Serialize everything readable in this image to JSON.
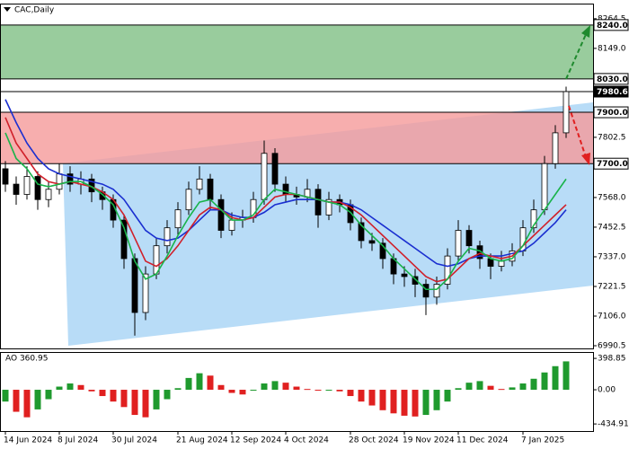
{
  "chart_data": [
    {
      "type": "candlestick",
      "title": "CAC,Daily",
      "categories": [
        "14 Jun 2024",
        null,
        null,
        null,
        null,
        "8 Jul 2024",
        null,
        null,
        null,
        null,
        "30 Jul 2024",
        null,
        null,
        null,
        null,
        null,
        "21 Aug 2024",
        null,
        null,
        null,
        null,
        "12 Sep 2024",
        null,
        null,
        null,
        null,
        "4 Oct 2024",
        null,
        null,
        null,
        null,
        null,
        "28 Oct 2024",
        null,
        null,
        null,
        null,
        "19 Nov 2024",
        null,
        null,
        null,
        null,
        "11 Dec 2024",
        null,
        null,
        null,
        null,
        null,
        "7 Jan 2025",
        null,
        null,
        null,
        null
      ],
      "open": [
        7680,
        7620,
        7580,
        7650,
        7560,
        7600,
        7660,
        7620,
        7640,
        7590,
        7560,
        7480,
        7330,
        7120,
        7270,
        7380,
        7450,
        7520,
        7600,
        7640,
        7560,
        7440,
        7480,
        7490,
        7560,
        7740,
        7620,
        7580,
        7570,
        7600,
        7500,
        7560,
        7540,
        7470,
        7400,
        7390,
        7330,
        7270,
        7260,
        7230,
        7180,
        7230,
        7340,
        7440,
        7380,
        7330,
        7300,
        7320,
        7360,
        7450,
        7520,
        7700,
        7820
      ],
      "high": [
        7710,
        7650,
        7690,
        7670,
        7630,
        7700,
        7690,
        7670,
        7660,
        7610,
        7580,
        7500,
        7350,
        7300,
        7410,
        7480,
        7550,
        7630,
        7690,
        7660,
        7580,
        7510,
        7520,
        7590,
        7790,
        7760,
        7650,
        7610,
        7640,
        7620,
        7590,
        7580,
        7560,
        7490,
        7430,
        7410,
        7350,
        7300,
        7290,
        7250,
        7260,
        7370,
        7480,
        7460,
        7400,
        7350,
        7360,
        7390,
        7480,
        7560,
        7730,
        7850,
        8000
      ],
      "low": [
        7590,
        7540,
        7560,
        7520,
        7530,
        7580,
        7590,
        7580,
        7550,
        7520,
        7450,
        7290,
        7030,
        7090,
        7250,
        7350,
        7420,
        7500,
        7580,
        7520,
        7410,
        7420,
        7450,
        7470,
        7540,
        7590,
        7550,
        7540,
        7550,
        7450,
        7480,
        7510,
        7440,
        7370,
        7360,
        7290,
        7230,
        7220,
        7180,
        7110,
        7150,
        7210,
        7320,
        7350,
        7290,
        7250,
        7280,
        7300,
        7340,
        7430,
        7500,
        7680,
        7800
      ],
      "close": [
        7620,
        7580,
        7650,
        7560,
        7600,
        7660,
        7620,
        7640,
        7590,
        7560,
        7480,
        7330,
        7120,
        7270,
        7380,
        7450,
        7520,
        7600,
        7640,
        7560,
        7440,
        7480,
        7490,
        7560,
        7740,
        7620,
        7580,
        7570,
        7600,
        7500,
        7560,
        7540,
        7470,
        7400,
        7390,
        7330,
        7270,
        7260,
        7230,
        7180,
        7230,
        7340,
        7440,
        7380,
        7330,
        7300,
        7320,
        7360,
        7450,
        7520,
        7700,
        7820,
        7980.6
      ],
      "up_color": "#ffffff",
      "down_color": "#000000",
      "series": [
        {
          "color": "#1a2fd0",
          "values": [
            7950,
            7860,
            7780,
            7720,
            7680,
            7660,
            7650,
            7640,
            7630,
            7620,
            7600,
            7560,
            7500,
            7440,
            7410,
            7400,
            7410,
            7440,
            7480,
            7520,
            7520,
            7500,
            7490,
            7490,
            7510,
            7540,
            7550,
            7560,
            7560,
            7560,
            7550,
            7550,
            7540,
            7520,
            7490,
            7460,
            7430,
            7400,
            7370,
            7340,
            7310,
            7300,
            7310,
            7330,
            7340,
            7340,
            7340,
            7350,
            7360,
            7390,
            7430,
            7470,
            7520
          ]
        },
        {
          "color": "#d0202a",
          "values": [
            7880,
            7780,
            7720,
            7660,
            7630,
            7620,
            7630,
            7620,
            7610,
            7590,
            7560,
            7500,
            7410,
            7320,
            7300,
            7330,
            7380,
            7440,
            7500,
            7530,
            7520,
            7490,
            7480,
            7490,
            7530,
            7570,
            7580,
            7580,
            7570,
            7560,
            7550,
            7550,
            7530,
            7500,
            7460,
            7420,
            7380,
            7340,
            7300,
            7260,
            7240,
            7250,
            7290,
            7330,
            7350,
            7340,
            7330,
            7340,
            7380,
            7420,
            7460,
            7500,
            7540
          ]
        },
        {
          "color": "#19b34a",
          "values": [
            7820,
            7720,
            7680,
            7620,
            7610,
            7620,
            7630,
            7630,
            7610,
            7580,
            7540,
            7450,
            7320,
            7250,
            7270,
            7340,
            7420,
            7490,
            7550,
            7560,
            7520,
            7480,
            7480,
            7500,
            7560,
            7600,
            7590,
            7580,
            7570,
            7560,
            7550,
            7540,
            7510,
            7460,
            7420,
            7380,
            7330,
            7290,
            7250,
            7210,
            7210,
            7250,
            7320,
            7370,
            7360,
            7330,
            7320,
            7330,
            7380,
            7460,
            7520,
            7580,
            7640
          ]
        }
      ],
      "zones": [
        {
          "from": 8030,
          "to": 8240,
          "color": "#7fbf85"
        },
        {
          "from": 7700,
          "to": 7900,
          "color": "#f59a9a"
        }
      ],
      "levels": [
        {
          "value": 8240,
          "label": "8240.0",
          "color": "#ffffff"
        },
        {
          "value": 8030,
          "label": "8030.0",
          "color": "#ffffff"
        },
        {
          "value": 7980.6,
          "label": "7980.6",
          "color": "#000000"
        },
        {
          "value": 7900,
          "label": "7900.0",
          "color": "#ffffff"
        },
        {
          "value": 7700,
          "label": "7700.0",
          "color": "#ffffff"
        }
      ],
      "ylim": [
        6980,
        8320
      ],
      "yticks": [
        6990.5,
        {
          "value": 7106,
          "label": "7106.0"
        },
        7221.5,
        {
          "value": 7337,
          "label": "7337.0"
        },
        7452.5,
        {
          "value": 7568,
          "label": "7568.0"
        },
        7802.5,
        {
          "value": 8149,
          "label": "8149.0"
        },
        8264.5
      ]
    },
    {
      "type": "bar",
      "title": "AO 360.95",
      "values": [
        -150,
        -280,
        -350,
        -250,
        -120,
        40,
        80,
        60,
        -20,
        -80,
        -150,
        -220,
        -320,
        -350,
        -250,
        -120,
        20,
        150,
        210,
        180,
        60,
        -40,
        -60,
        -10,
        80,
        110,
        90,
        40,
        10,
        -10,
        0,
        -20,
        -80,
        -150,
        -200,
        -260,
        -300,
        -330,
        -340,
        -320,
        -260,
        -150,
        20,
        90,
        110,
        50,
        10,
        30,
        80,
        140,
        220,
        300,
        360.95
      ],
      "up_color": "#1f9a2e",
      "down_color": "#e02020",
      "ylim": [
        -525,
        480
      ],
      "yticks": [
        398.85,
        {
          "value": 0,
          "label": "0.00"
        },
        -434.91
      ]
    }
  ]
}
